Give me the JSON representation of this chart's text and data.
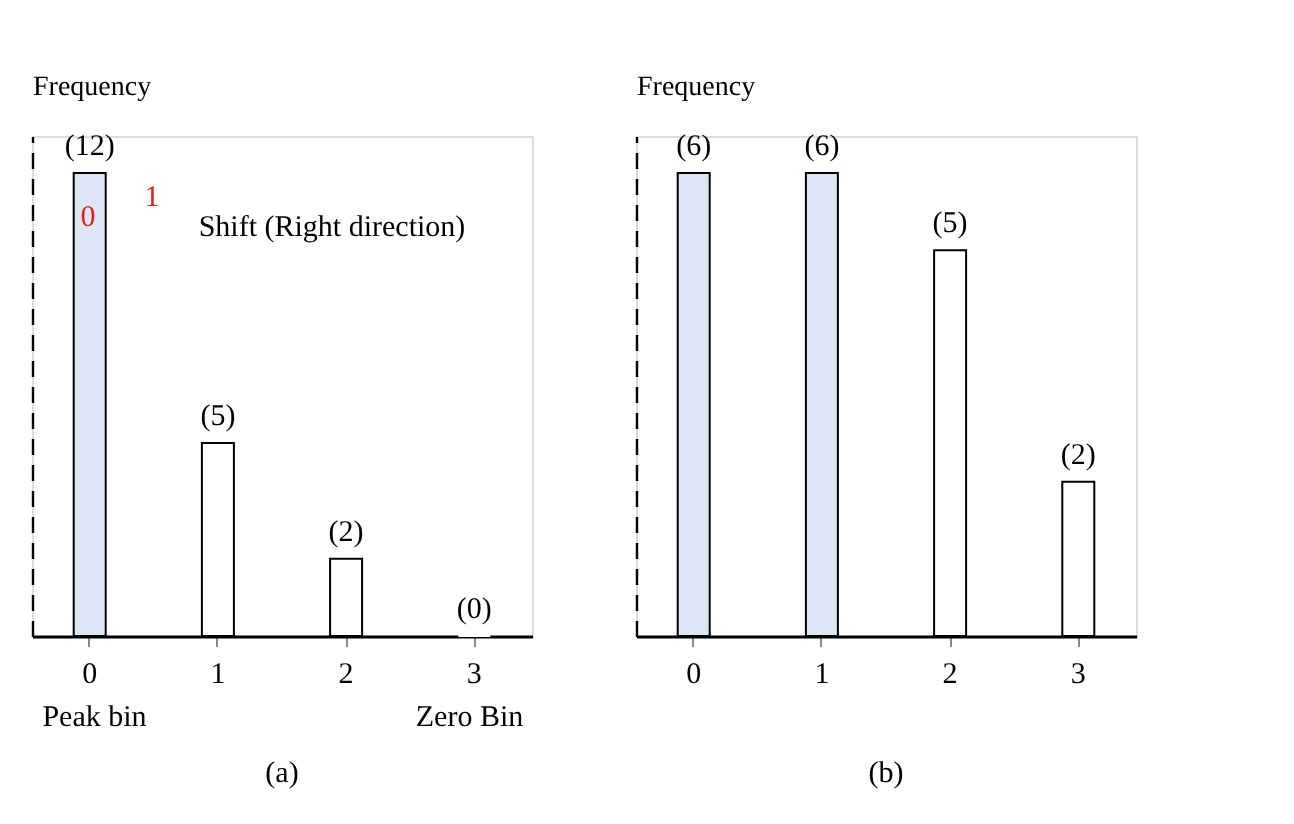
{
  "chart_data": [
    {
      "type": "bar",
      "ylabel": "Frequency",
      "categories": [
        "0",
        "1",
        "2",
        "3"
      ],
      "values": [
        12,
        5,
        2,
        0
      ],
      "colors": [
        "#dde6f4",
        "#ffffff",
        "#ffffff",
        "#ffffff"
      ],
      "value_labels": [
        "(12)",
        "(5)",
        "(2)",
        "(0)"
      ],
      "tick_labels": "x",
      "grid": false,
      "annotations": [
        "1",
        "0",
        "Shift (Right direction)",
        "Peak bin",
        "Zero Bin",
        "(a)"
      ]
    },
    {
      "type": "bar",
      "ylabel": "Frequency",
      "categories": [
        "0",
        "1",
        "2",
        "3"
      ],
      "values": [
        6,
        6,
        5,
        2
      ],
      "colors": [
        "#dde6f4",
        "#dde6f4",
        "#ffffff",
        "#ffffff"
      ],
      "value_labels": [
        "(6)",
        "(6)",
        "(5)",
        "(2)"
      ],
      "tick_labels": "x",
      "grid": false,
      "annotations": [
        "(b)"
      ]
    }
  ]
}
